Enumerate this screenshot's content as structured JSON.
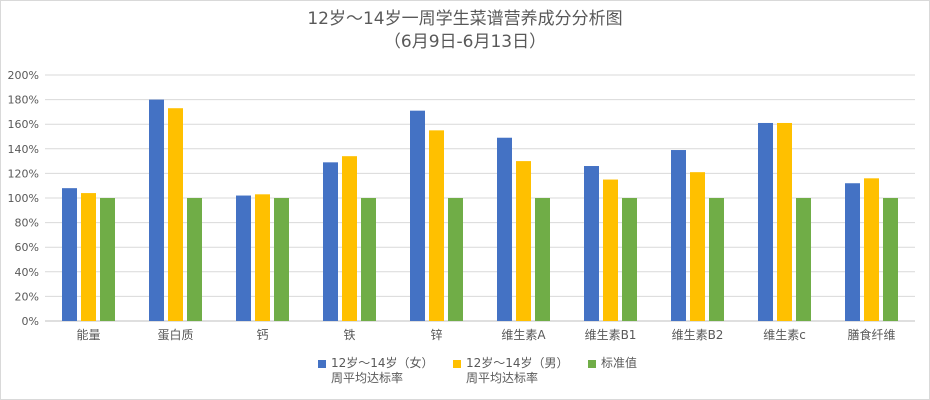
{
  "chart_data": {
    "type": "bar",
    "title": "12岁～14岁一周学生菜谱营养成分分析图",
    "subtitle": "（6月9日-6月13日）",
    "categories": [
      "能量",
      "蛋白质",
      "钙",
      "铁",
      "锌",
      "维生素A",
      "维生素B1",
      "维生素B2",
      "维生素c",
      "膳食纤维"
    ],
    "series": [
      {
        "name": "12岁～14岁（女）周平均达标率",
        "color": "#4472c4",
        "values": [
          108,
          180,
          102,
          129,
          171,
          149,
          126,
          139,
          161,
          112
        ]
      },
      {
        "name": "12岁～14岁（男）周平均达标率",
        "color": "#ffc000",
        "values": [
          104,
          173,
          103,
          134,
          155,
          130,
          115,
          121,
          161,
          116
        ]
      },
      {
        "name": "标准值",
        "color": "#70ad47",
        "values": [
          100,
          100,
          100,
          100,
          100,
          100,
          100,
          100,
          100,
          100
        ]
      }
    ],
    "y_ticks": [
      "0%",
      "20%",
      "40%",
      "60%",
      "80%",
      "100%",
      "120%",
      "140%",
      "160%",
      "180%",
      "200%"
    ],
    "ylim": [
      0,
      200
    ],
    "xlabel": "",
    "ylabel": "",
    "grid": true,
    "legend_position": "bottom"
  }
}
